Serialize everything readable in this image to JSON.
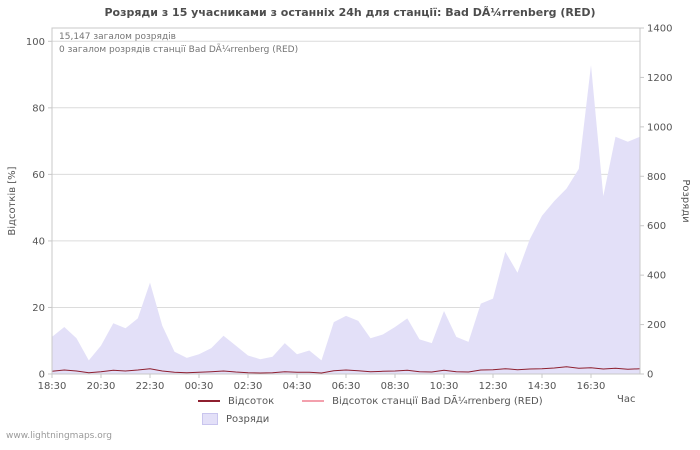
{
  "annotations": {
    "total": "15,147 загалом розрядів",
    "station_total": "0 загалом розрядів станції Bad DÃ¼rrenberg (RED)"
  },
  "watermark": "www.lightningmaps.org",
  "colors": {
    "grid": "#dcdcdc",
    "plot_border": "#c8c8c8",
    "tick_text": "#555555",
    "title_text": "#4d4d4d"
  },
  "chart_data": {
    "type": "area",
    "title": "Розряди з 15 учасниками з останніх 24h для станції: Bad DÃ¼rrenberg (RED)",
    "x_label": "Час",
    "x_start": "18:30",
    "x_step_minutes": 30,
    "x_tick_labels": [
      "18:30",
      "20:30",
      "22:30",
      "00:30",
      "02:30",
      "04:30",
      "06:30",
      "08:30",
      "10:30",
      "12:30",
      "14:30",
      "16:30"
    ],
    "left_axis": {
      "label": "Відсотків [%]",
      "ticks": [
        0,
        20,
        40,
        60,
        80,
        100
      ],
      "range": [
        0,
        104
      ]
    },
    "right_axis": {
      "label": "Розряди",
      "ticks": [
        0,
        200,
        400,
        600,
        800,
        1000,
        1200,
        1400
      ],
      "range": [
        0,
        1400
      ]
    },
    "grid": "horizontal",
    "legend_position": "bottom",
    "totals": {
      "total_strikes": "15,147",
      "station_strikes": "0"
    },
    "series": [
      {
        "name": "Розряди",
        "type": "area",
        "axis": "right",
        "color": "#e3e0f8",
        "values": [
          150,
          190,
          145,
          55,
          115,
          205,
          185,
          225,
          370,
          195,
          90,
          65,
          80,
          105,
          155,
          115,
          75,
          60,
          70,
          125,
          80,
          95,
          55,
          210,
          235,
          215,
          145,
          160,
          190,
          225,
          140,
          125,
          255,
          150,
          130,
          285,
          305,
          495,
          410,
          545,
          640,
          700,
          750,
          830,
          1250,
          720,
          960,
          940,
          960
        ]
      },
      {
        "name": "Відсоток",
        "type": "line",
        "axis": "left",
        "color": "#8e1f2f",
        "values": [
          0.8,
          1.2,
          0.9,
          0.4,
          0.7,
          1.1,
          0.9,
          1.2,
          1.6,
          0.9,
          0.5,
          0.4,
          0.5,
          0.7,
          0.9,
          0.6,
          0.4,
          0.3,
          0.4,
          0.7,
          0.5,
          0.5,
          0.3,
          1.0,
          1.2,
          1.0,
          0.7,
          0.8,
          0.9,
          1.1,
          0.7,
          0.6,
          1.1,
          0.7,
          0.6,
          1.2,
          1.3,
          1.6,
          1.3,
          1.5,
          1.6,
          1.8,
          2.2,
          1.7,
          1.9,
          1.5,
          1.7,
          1.4,
          1.6
        ]
      },
      {
        "name": "Відсоток станції Bad DÃ¼rrenberg (RED)",
        "type": "line",
        "axis": "left",
        "color": "#f3a0ad",
        "values": [
          0,
          0,
          0,
          0,
          0,
          0,
          0,
          0,
          0,
          0,
          0,
          0,
          0,
          0,
          0,
          0,
          0,
          0,
          0,
          0,
          0,
          0,
          0,
          0,
          0,
          0,
          0,
          0,
          0,
          0,
          0,
          0,
          0,
          0,
          0,
          0,
          0,
          0,
          0,
          0,
          0,
          0,
          0,
          0,
          0,
          0,
          0,
          0,
          0
        ]
      }
    ]
  }
}
